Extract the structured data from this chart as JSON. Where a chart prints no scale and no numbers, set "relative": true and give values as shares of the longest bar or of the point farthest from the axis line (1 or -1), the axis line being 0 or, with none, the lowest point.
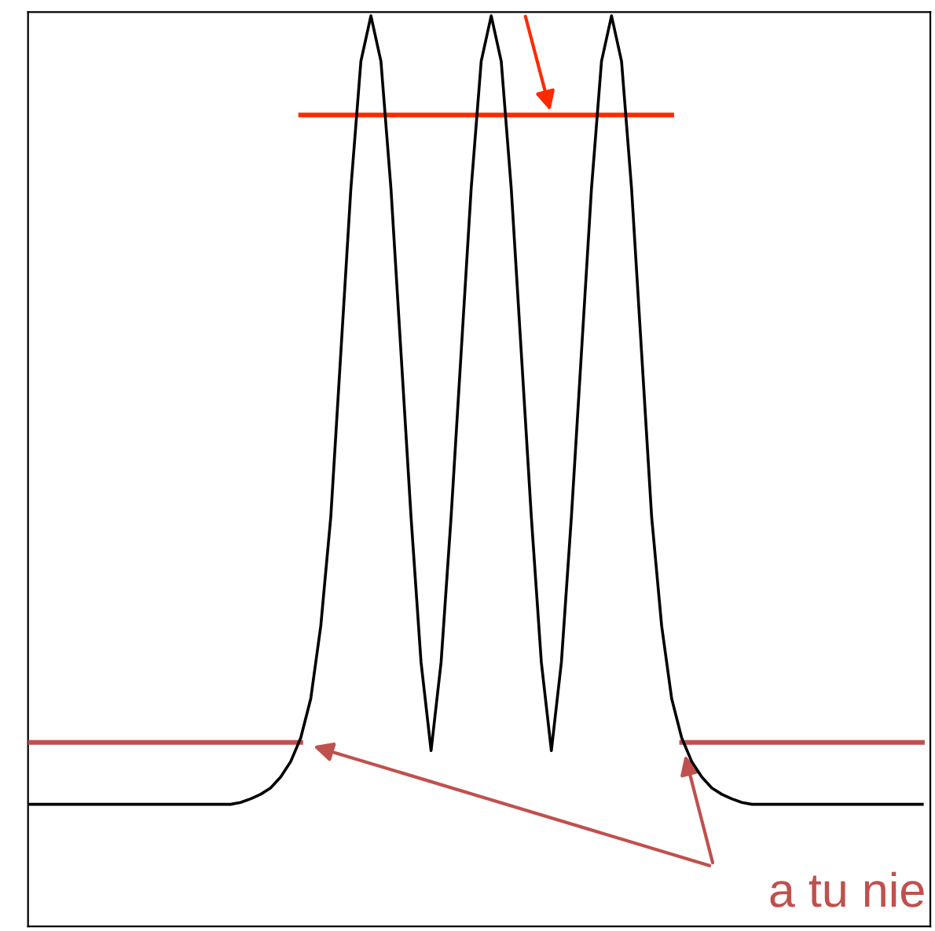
{
  "chart_data": {
    "type": "line",
    "relative": true,
    "marker": "none",
    "line_style": "solid",
    "categories": [
      null,
      null,
      null,
      null,
      null,
      null,
      null,
      null,
      null,
      null,
      null,
      null,
      null,
      null,
      null,
      null,
      null,
      null,
      null,
      null,
      null,
      null,
      null,
      null,
      null,
      null,
      null,
      null,
      null,
      null,
      null,
      null,
      null,
      null,
      null,
      null,
      null,
      null,
      null,
      null,
      null,
      null,
      null,
      null,
      null,
      null,
      null,
      null,
      null,
      null,
      null,
      null,
      null,
      null,
      null,
      null,
      null,
      null,
      null,
      null,
      null,
      null,
      null,
      null,
      null,
      null,
      null,
      null,
      null,
      null,
      null,
      null,
      null,
      null,
      null,
      null,
      null,
      null,
      null,
      null,
      null,
      null,
      null,
      null,
      null,
      null,
      null,
      null,
      null,
      null
    ],
    "series": [
      {
        "color": "#000000",
        "values": [
          0.134,
          0.134,
          0.134,
          0.134,
          0.134,
          0.134,
          0.134,
          0.134,
          0.134,
          0.134,
          0.134,
          0.134,
          0.134,
          0.134,
          0.134,
          0.134,
          0.134,
          0.134,
          0.134,
          0.134,
          0.134,
          0.136,
          0.14,
          0.145,
          0.152,
          0.164,
          0.181,
          0.207,
          0.25,
          0.33,
          0.45,
          0.63,
          0.81,
          0.95,
          1.0,
          0.95,
          0.81,
          0.63,
          0.45,
          0.29,
          0.193,
          0.29,
          0.45,
          0.63,
          0.81,
          0.95,
          1.0,
          0.95,
          0.81,
          0.63,
          0.45,
          0.29,
          0.193,
          0.29,
          0.45,
          0.63,
          0.81,
          0.95,
          1.0,
          0.95,
          0.81,
          0.63,
          0.45,
          0.33,
          0.25,
          0.207,
          0.181,
          0.164,
          0.152,
          0.145,
          0.14,
          0.136,
          0.134,
          0.134,
          0.134,
          0.134,
          0.134,
          0.134,
          0.134,
          0.134,
          0.134,
          0.134,
          0.134,
          0.134,
          0.134,
          0.134,
          0.134,
          0.134,
          0.134,
          0.134
        ]
      },
      {
        "color": "#c0504d",
        "values": [
          0.202,
          0.202,
          0.202,
          0.202,
          0.202,
          0.202,
          0.202,
          0.202,
          0.202,
          0.202,
          0.202,
          0.202,
          0.202,
          0.202,
          0.202,
          0.202,
          0.202,
          0.202,
          0.202,
          0.202,
          0.202,
          0.202,
          0.202,
          0.202,
          0.202,
          0.202,
          0.202,
          0.202,
          null,
          null,
          null,
          null,
          null,
          null,
          null,
          null,
          null,
          null,
          null,
          null,
          null,
          null,
          null,
          null,
          null,
          null,
          null,
          null,
          null,
          null,
          null,
          null,
          null,
          null,
          null,
          null,
          null,
          null,
          null,
          null,
          null,
          null,
          null,
          null,
          null,
          0.202,
          0.202,
          0.202,
          0.202,
          0.202,
          0.202,
          0.202,
          0.202,
          0.202,
          0.202,
          0.202,
          0.202,
          0.202,
          0.202,
          0.202,
          0.202,
          0.202,
          0.202,
          0.202,
          0.202,
          0.202,
          0.202,
          0.202,
          0.202,
          0.202
        ]
      },
      {
        "color": "#ff2a00",
        "values": [
          null,
          null,
          null,
          null,
          null,
          null,
          null,
          null,
          null,
          null,
          null,
          null,
          null,
          null,
          null,
          null,
          null,
          null,
          null,
          null,
          null,
          null,
          null,
          null,
          null,
          null,
          null,
          0.891,
          0.891,
          0.891,
          0.891,
          0.891,
          0.891,
          0.891,
          0.891,
          0.891,
          0.891,
          0.891,
          0.891,
          0.891,
          0.891,
          0.891,
          0.891,
          0.891,
          0.891,
          0.891,
          0.891,
          0.891,
          0.891,
          0.891,
          0.891,
          0.891,
          0.891,
          0.891,
          0.891,
          0.891,
          0.891,
          0.891,
          0.891,
          0.891,
          0.891,
          0.891,
          0.891,
          0.891,
          0.891,
          null,
          null,
          null,
          null,
          null,
          null,
          null,
          null,
          null,
          null,
          null,
          null,
          null,
          null,
          null,
          null,
          null,
          null,
          null,
          null,
          null,
          null,
          null,
          null,
          null
        ]
      }
    ],
    "annotations": [
      "a tu nie"
    ]
  }
}
